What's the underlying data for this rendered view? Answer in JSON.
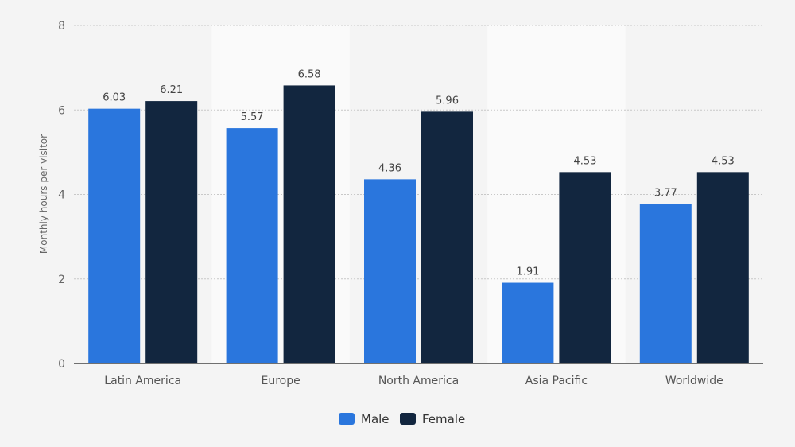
{
  "chart_data": {
    "type": "bar",
    "categories": [
      "Latin America",
      "Europe",
      "North America",
      "Asia Pacific",
      "Worldwide"
    ],
    "series": [
      {
        "name": "Male",
        "values": [
          6.03,
          5.57,
          4.36,
          1.91,
          3.77
        ]
      },
      {
        "name": "Female",
        "values": [
          6.21,
          6.58,
          5.96,
          4.53,
          4.53
        ]
      }
    ],
    "value_labels": [
      [
        "6.03",
        "5.57",
        "4.36",
        "1.91",
        "3.77"
      ],
      [
        "6.21",
        "6.58",
        "5.96",
        "4.53",
        "4.53"
      ]
    ],
    "ylabel": "Monthly hours per visitor",
    "xlabel": "",
    "ylim": [
      0,
      8
    ],
    "yticks": [
      "0",
      "2",
      "4",
      "6",
      "8"
    ],
    "grid": true,
    "legend_position": "bottom-center",
    "colors": {
      "series": [
        "#2a76dd",
        "#12263f"
      ],
      "background": "#f4f4f4",
      "band": "#fafafa",
      "grid": "#c8c8c8",
      "axis": "#222222"
    }
  }
}
